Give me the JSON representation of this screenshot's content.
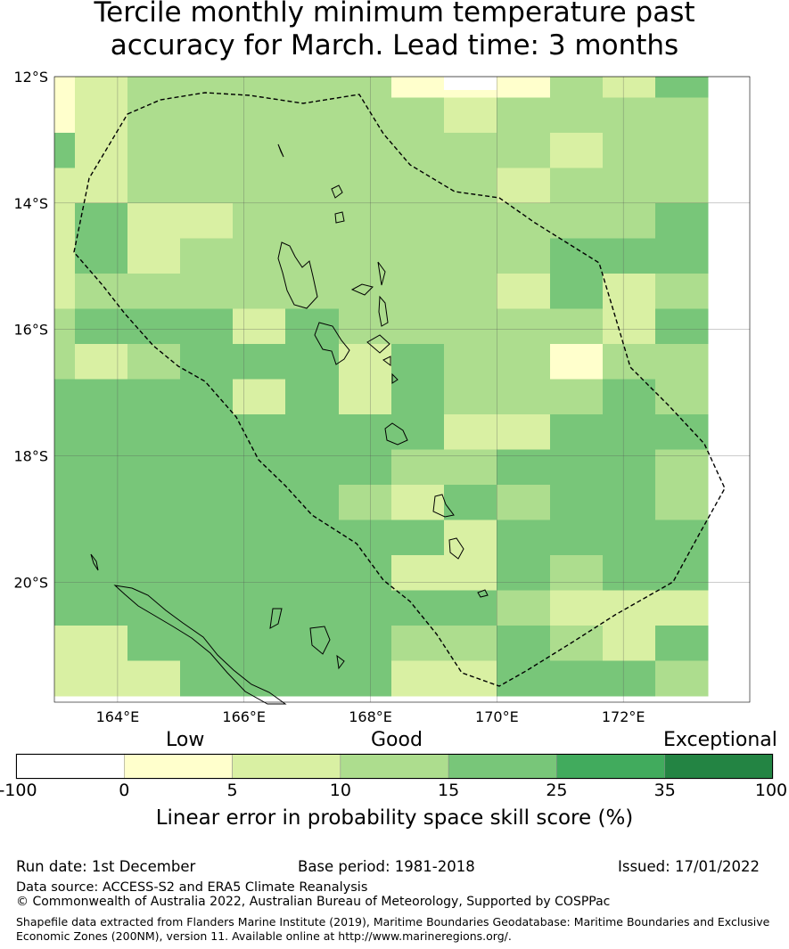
{
  "title": "Tercile monthly minimum temperature past accuracy for March. Lead time: 3 months",
  "title_lines": [
    "Tercile monthly minimum temperature past",
    "accuracy for March. Lead time: 3 months"
  ],
  "map": {
    "lon_range": [
      163,
      174
    ],
    "lat_range": [
      -21.9,
      -12
    ],
    "lat_ticks": [
      {
        "v": -12,
        "label": "12°S"
      },
      {
        "v": -14,
        "label": "14°S"
      },
      {
        "v": -16,
        "label": "16°S"
      },
      {
        "v": -18,
        "label": "18°S"
      },
      {
        "v": -20,
        "label": "20°S"
      }
    ],
    "lon_ticks": [
      {
        "v": 164,
        "label": "164°E"
      },
      {
        "v": 166,
        "label": "166°E"
      },
      {
        "v": 168,
        "label": "168°E"
      },
      {
        "v": 170,
        "label": "170°E"
      },
      {
        "v": 172,
        "label": "172°E"
      }
    ],
    "grid_columns": 13,
    "grid_rows": 18,
    "grid_cells": [
      "0C111220001C3",
      "0C112222C1111",
      "3C11111221C11",
      "CC1111112C112",
      "C3CC122111223",
      "C3C2111112333",
      "C22222111C3C2",
      "2333C322122C3",
      "1C1333C311022",
      "3333C3C312232",
      "33333333CC333",
      "3333333223332",
      "3333332C32332",
      "33333333C3333",
      "3333333CC3233",
      "3333333332CCC",
      "CC333332232C3",
      "CCC3333CC3332"
    ],
    "legend": "0=5-10, 1=10-15 ... see legend"
  },
  "legend": {
    "category_labels": [
      "Low",
      "Good",
      "Exceptional"
    ],
    "bins": [
      {
        "label": "-100",
        "color": "#ffffff"
      },
      {
        "label": "0",
        "color": "#ffffcc"
      },
      {
        "label": "5",
        "color": "#d9f0a3"
      },
      {
        "label": "10",
        "color": "#addd8e"
      },
      {
        "label": "15",
        "color": "#78c679"
      },
      {
        "label": "25",
        "color": "#41ab5d"
      },
      {
        "label": "35",
        "color": "#238443"
      },
      {
        "label": "100",
        "color": null
      }
    ],
    "axis_label": "Linear error in probability space skill score (%)"
  },
  "footer": {
    "run_date": "Run date: 1st December",
    "base_period": "Base period: 1981-2018",
    "issued": "Issued: 17/01/2022",
    "data_source": "Data source: ACCESS-S2 and ERA5 Climate Reanalysis",
    "copyright": "© Commonwealth of Australia 2022, Australian Bureau of Meteorology, Supported by COSPPac",
    "shapefile": "Shapefile data extracted from Flanders Marine Institute (2019), Maritime Boundaries Geodatabase: Maritime Boundaries and Exclusive Economic Zones (200NM), version 11. Available online at http://www.marineregions.org/."
  }
}
